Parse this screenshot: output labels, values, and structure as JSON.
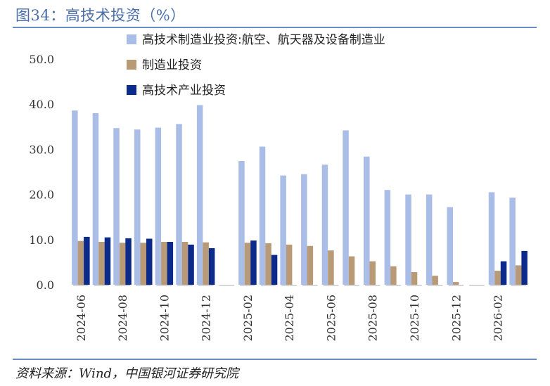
{
  "header": {
    "title": "图34：高技术投资（%）"
  },
  "footer": {
    "source": "资料来源：Wind，中国银河证券研究院"
  },
  "colors": {
    "title": "#4a6ea9",
    "rule": "#6b8cc0"
  },
  "chart_data": {
    "type": "bar",
    "ylim": [
      0,
      50
    ],
    "yticks": [
      "0.0",
      "10.0",
      "20.0",
      "30.0",
      "40.0",
      "50.0"
    ],
    "legend_position": "top",
    "grid": false,
    "categories": [
      "2024-06",
      "2024-07",
      "2024-08",
      "2024-09",
      "2024-10",
      "2024-11",
      "2024-12",
      "2025-01",
      "2025-02",
      "2025-03",
      "2025-04",
      "2025-05",
      "2025-06",
      "2025-07",
      "2025-08",
      "2025-09",
      "2025-10",
      "2025-11",
      "2025-12",
      "2026-01",
      "2026-02",
      "2026-03"
    ],
    "tick_labels": [
      "2024-06",
      "2024-08",
      "2024-10",
      "2024-12",
      "2025-02",
      "2025-04",
      "2025-06",
      "2025-08",
      "2025-10",
      "2025-12",
      "2026-02"
    ],
    "series": [
      {
        "name": "高技术制造业投资:航空、航天器及设备制造业",
        "color": "#a9bde6",
        "values": [
          38.6,
          38.0,
          34.7,
          34.4,
          34.8,
          35.6,
          39.8,
          null,
          27.4,
          30.6,
          24.2,
          24.5,
          26.6,
          34.2,
          28.4,
          21.0,
          20.0,
          20.0,
          17.2,
          null,
          20.5,
          19.3
        ]
      },
      {
        "name": "制造业投资",
        "color": "#b89a76",
        "values": [
          9.7,
          9.5,
          9.3,
          9.3,
          9.5,
          9.5,
          9.4,
          null,
          9.3,
          9.2,
          8.9,
          8.6,
          7.6,
          6.3,
          5.2,
          4.1,
          2.8,
          2.0,
          0.6,
          null,
          3.1,
          4.3
        ]
      },
      {
        "name": "高技术产业投资",
        "color": "#0b2a8a",
        "values": [
          10.6,
          10.5,
          10.3,
          10.2,
          9.5,
          8.9,
          8.1,
          null,
          9.8,
          6.6,
          null,
          null,
          null,
          null,
          null,
          null,
          null,
          null,
          null,
          null,
          5.2,
          7.5
        ]
      }
    ]
  }
}
